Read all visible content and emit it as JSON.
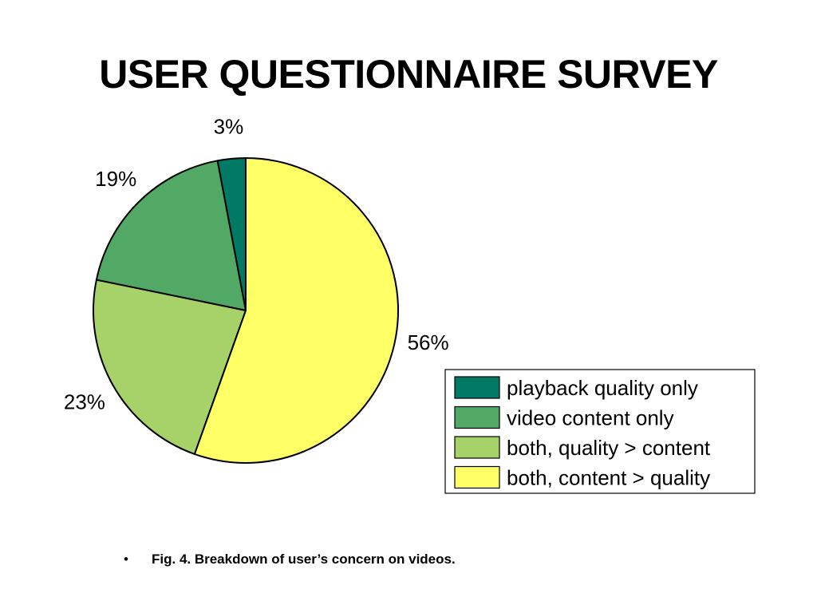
{
  "slide": {
    "title": "USER QUESTIONNAIRE SURVEY",
    "bullet": "•",
    "caption": "Fig. 4. Breakdown of user’s concern on videos."
  },
  "chart_data": {
    "type": "pie",
    "title": "",
    "start_angle": "top, counter-clockwise",
    "legend_placement": "bottom-right",
    "slices": [
      {
        "label": "playback quality only",
        "value": 3,
        "value_label": "3%",
        "color": "#007A64"
      },
      {
        "label": "video content only",
        "value": 19,
        "value_label": "19%",
        "color": "#52A865"
      },
      {
        "label": "both, quality > content",
        "value": 23,
        "value_label": "23%",
        "color": "#A7D26A"
      },
      {
        "label": "both, content > quality",
        "value": 56,
        "value_label": "56%",
        "color": "#FFFF66"
      }
    ]
  }
}
